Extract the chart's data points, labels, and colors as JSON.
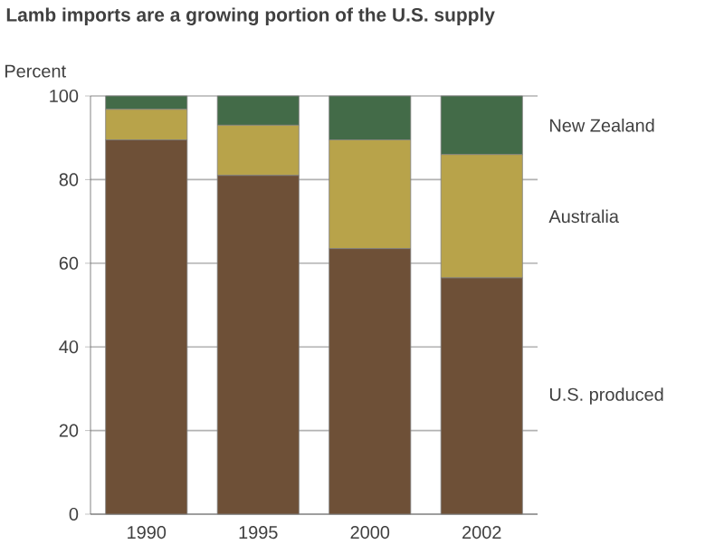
{
  "chart_data": {
    "type": "bar",
    "title": "Lamb imports are a growing portion of the U.S. supply",
    "ylabel": "Percent",
    "categories": [
      "1990",
      "1995",
      "2000",
      "2002"
    ],
    "series": [
      {
        "name": "U.S. produced",
        "color": "#6e5037",
        "values": [
          89.5,
          81,
          63.5,
          56.5
        ]
      },
      {
        "name": "Australia",
        "color": "#b8a34a",
        "values": [
          7.3,
          12,
          26,
          29.5
        ]
      },
      {
        "name": "New Zealand",
        "color": "#436b48",
        "values": [
          3.2,
          7,
          10.5,
          14
        ]
      }
    ],
    "stacked": true,
    "ylim": [
      0,
      100
    ],
    "yticks": [
      0,
      20,
      40,
      60,
      80,
      100
    ],
    "grid": "y",
    "legend": "right"
  }
}
